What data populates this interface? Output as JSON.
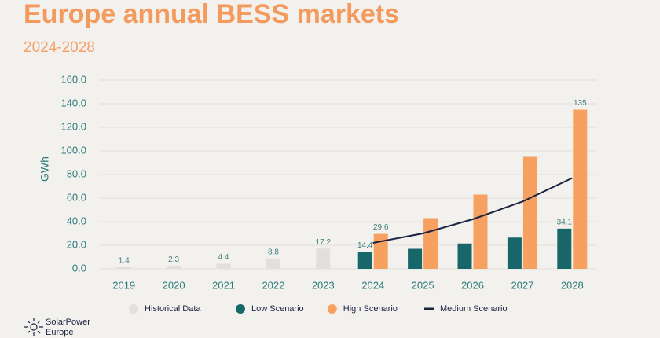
{
  "chart_data": {
    "type": "bar",
    "title": "Europe annual BESS markets",
    "subtitle": "2024-2028",
    "y_label": "GWh",
    "categories": [
      "2019",
      "2020",
      "2021",
      "2022",
      "2023",
      "2024",
      "2025",
      "2026",
      "2027",
      "2028"
    ],
    "series": [
      {
        "name": "Historical Data",
        "type": "bar",
        "color": "#e2e0dc",
        "values": [
          1.4,
          2.3,
          4.4,
          8.8,
          17.2,
          null,
          null,
          null,
          null,
          null
        ],
        "value_labels": [
          "1.4",
          "2.3",
          "4.4",
          "8.8",
          "17.2",
          null,
          null,
          null,
          null,
          null
        ]
      },
      {
        "name": "Low Scenario",
        "type": "bar",
        "color": "#17676a",
        "values": [
          null,
          null,
          null,
          null,
          null,
          14.4,
          17,
          21.5,
          26.5,
          34.1
        ],
        "value_labels": [
          null,
          null,
          null,
          null,
          null,
          "14.4",
          null,
          null,
          null,
          "34.1"
        ]
      },
      {
        "name": "High Scenario",
        "type": "bar",
        "color": "#f7a160",
        "values": [
          null,
          null,
          null,
          null,
          null,
          29.6,
          43,
          63,
          95,
          135
        ],
        "value_labels": [
          null,
          null,
          null,
          null,
          null,
          "29.6",
          null,
          null,
          null,
          "135"
        ]
      },
      {
        "name": "Medium Scenario",
        "type": "line",
        "color": "#1a2340",
        "values": [
          null,
          null,
          null,
          null,
          null,
          22,
          30,
          42,
          57,
          77
        ]
      }
    ],
    "ylim": [
      0,
      160
    ],
    "yticks": [
      {
        "value": 0,
        "label": "0.0"
      },
      {
        "value": 20,
        "label": "20.0"
      },
      {
        "value": 40,
        "label": "40.0"
      },
      {
        "value": 60,
        "label": "60.0"
      },
      {
        "value": 80,
        "label": "80.0"
      },
      {
        "value": 100,
        "label": "100.0"
      },
      {
        "value": 120,
        "label": "120.0"
      },
      {
        "value": 140,
        "label": "140.0"
      },
      {
        "value": 160,
        "label": "160.0"
      }
    ],
    "grid": true,
    "legend": "bottom"
  },
  "logo": [
    "SolarPower",
    "Europe"
  ]
}
